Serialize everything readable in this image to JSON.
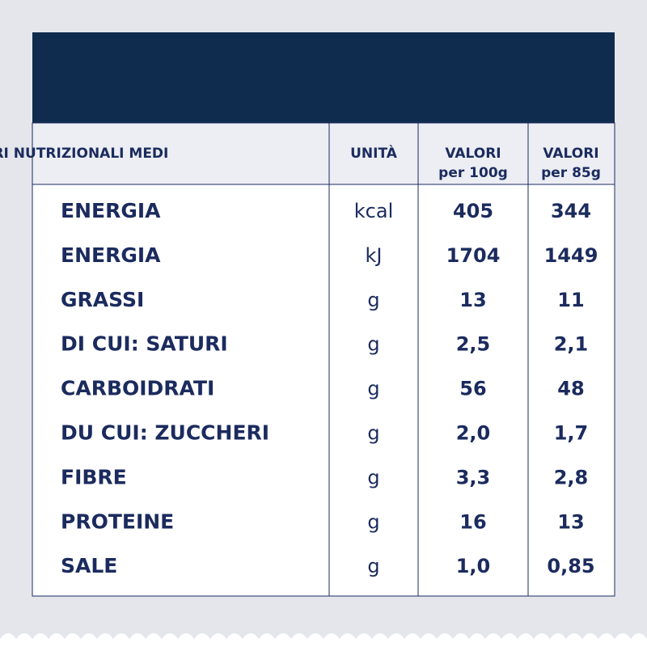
{
  "table": {
    "header": [
      [
        "VALORI NUTRIZIONALI MEDI"
      ],
      [
        "UNITÀ"
      ],
      [
        "VALORI",
        "per 100g"
      ],
      [
        "VALORI",
        "per 85g"
      ]
    ],
    "rows": [
      [
        "ENERGIA",
        "kcal",
        "405",
        "344"
      ],
      [
        "ENERGIA",
        "kJ",
        "1704",
        "1449"
      ],
      [
        "GRASSI",
        "g",
        "13",
        "11"
      ],
      [
        "DI CUI: SATURI",
        "g",
        "2,5",
        "2,1"
      ],
      [
        "CARBOIDRATI",
        "g",
        "56",
        "48"
      ],
      [
        "DU CUI: ZUCCHERI",
        "g",
        "2,0",
        "1,7"
      ],
      [
        "FIBRE",
        "g",
        "3,3",
        "2,8"
      ],
      [
        "PROTEINE",
        "g",
        "16",
        "13"
      ],
      [
        "SALE",
        "g",
        "1,0",
        "0,85"
      ]
    ]
  }
}
